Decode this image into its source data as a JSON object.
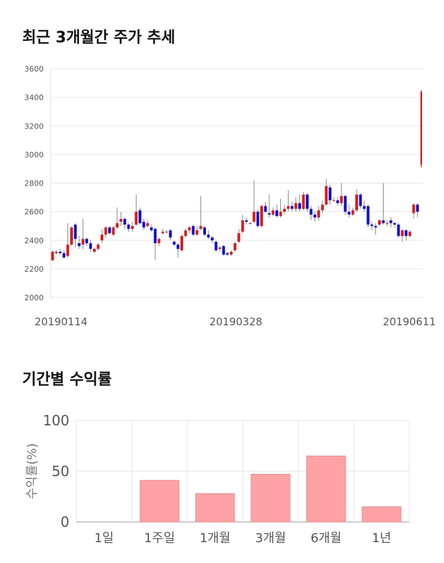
{
  "sections": {
    "price_title": "최근 3개월간 주가 추세",
    "return_title": "기간별 수익률"
  },
  "chart_data": [
    {
      "type": "candlestick",
      "title": "최근 3개월간 주가 추세",
      "ylim": [
        2000,
        3600
      ],
      "yticks": [
        2000,
        2200,
        2400,
        2600,
        2800,
        3000,
        3200,
        3400,
        3600
      ],
      "x_tick_labels": [
        "20190114",
        "20190328",
        "20190611"
      ],
      "grid": true,
      "colors": {
        "up": "#d21f1f",
        "down": "#1010c8",
        "wick": "#888888",
        "last": "#c00000"
      },
      "candles": [
        [
          2260,
          2320,
          2255,
          2330
        ],
        [
          2310,
          2320,
          2300,
          2330
        ],
        [
          2320,
          2310,
          2300,
          2340
        ],
        [
          2310,
          2280,
          2270,
          2330
        ],
        [
          2290,
          2370,
          2280,
          2520
        ],
        [
          2370,
          2490,
          2360,
          2500
        ],
        [
          2510,
          2410,
          2350,
          2520
        ],
        [
          2380,
          2360,
          2340,
          2430
        ],
        [
          2370,
          2410,
          2340,
          2550
        ],
        [
          2410,
          2380,
          2360,
          2420
        ],
        [
          2380,
          2340,
          2320,
          2400
        ],
        [
          2320,
          2340,
          2310,
          2350
        ],
        [
          2340,
          2370,
          2330,
          2380
        ],
        [
          2400,
          2440,
          2380,
          2480
        ],
        [
          2440,
          2490,
          2420,
          2500
        ],
        [
          2490,
          2450,
          2440,
          2500
        ],
        [
          2440,
          2490,
          2430,
          2500
        ],
        [
          2490,
          2520,
          2480,
          2630
        ],
        [
          2530,
          2550,
          2500,
          2600
        ],
        [
          2550,
          2510,
          2480,
          2560
        ],
        [
          2510,
          2480,
          2460,
          2520
        ],
        [
          2480,
          2500,
          2460,
          2530
        ],
        [
          2510,
          2600,
          2500,
          2720
        ],
        [
          2610,
          2520,
          2510,
          2630
        ],
        [
          2530,
          2490,
          2470,
          2550
        ],
        [
          2500,
          2520,
          2490,
          2540
        ],
        [
          2490,
          2470,
          2460,
          2510
        ],
        [
          2480,
          2380,
          2260,
          2490
        ],
        [
          2380,
          2410,
          2360,
          2420
        ],
        [
          2450,
          2460,
          2440,
          2480
        ],
        [
          2460,
          2460,
          2450,
          2470
        ],
        [
          2470,
          2420,
          2400,
          2480
        ],
        [
          2390,
          2370,
          2360,
          2400
        ],
        [
          2370,
          2340,
          2280,
          2380
        ],
        [
          2330,
          2430,
          2320,
          2440
        ],
        [
          2430,
          2470,
          2420,
          2480
        ],
        [
          2470,
          2490,
          2450,
          2500
        ],
        [
          2500,
          2440,
          2430,
          2510
        ],
        [
          2440,
          2470,
          2430,
          2500
        ],
        [
          2480,
          2500,
          2470,
          2710
        ],
        [
          2490,
          2440,
          2430,
          2500
        ],
        [
          2440,
          2420,
          2410,
          2470
        ],
        [
          2420,
          2400,
          2380,
          2430
        ],
        [
          2390,
          2330,
          2320,
          2400
        ],
        [
          2340,
          2350,
          2320,
          2360
        ],
        [
          2360,
          2300,
          2290,
          2370
        ],
        [
          2310,
          2300,
          2290,
          2320
        ],
        [
          2300,
          2320,
          2290,
          2330
        ],
        [
          2330,
          2380,
          2320,
          2390
        ],
        [
          2390,
          2450,
          2380,
          2480
        ],
        [
          2460,
          2540,
          2450,
          2580
        ],
        [
          2540,
          2530,
          2510,
          2560
        ],
        [
          2520,
          2520,
          2510,
          2530
        ],
        [
          2530,
          2600,
          2520,
          2820
        ],
        [
          2600,
          2500,
          2490,
          2620
        ],
        [
          2500,
          2640,
          2490,
          2650
        ],
        [
          2640,
          2600,
          2590,
          2670
        ],
        [
          2590,
          2580,
          2560,
          2720
        ],
        [
          2580,
          2610,
          2570,
          2630
        ],
        [
          2610,
          2570,
          2560,
          2650
        ],
        [
          2570,
          2600,
          2560,
          2690
        ],
        [
          2600,
          2620,
          2580,
          2650
        ],
        [
          2620,
          2640,
          2600,
          2750
        ],
        [
          2640,
          2620,
          2600,
          2670
        ],
        [
          2620,
          2660,
          2600,
          2700
        ],
        [
          2660,
          2620,
          2600,
          2720
        ],
        [
          2620,
          2720,
          2610,
          2740
        ],
        [
          2720,
          2620,
          2600,
          2730
        ],
        [
          2620,
          2580,
          2540,
          2640
        ],
        [
          2580,
          2560,
          2530,
          2600
        ],
        [
          2560,
          2610,
          2540,
          2640
        ],
        [
          2610,
          2650,
          2590,
          2680
        ],
        [
          2650,
          2780,
          2640,
          2830
        ],
        [
          2770,
          2680,
          2650,
          2790
        ],
        [
          2680,
          2680,
          2670,
          2700
        ],
        [
          2680,
          2660,
          2640,
          2700
        ],
        [
          2660,
          2710,
          2640,
          2800
        ],
        [
          2710,
          2600,
          2580,
          2720
        ],
        [
          2600,
          2580,
          2560,
          2650
        ],
        [
          2580,
          2610,
          2570,
          2630
        ],
        [
          2610,
          2720,
          2600,
          2760
        ],
        [
          2720,
          2640,
          2620,
          2730
        ],
        [
          2640,
          2620,
          2600,
          2680
        ],
        [
          2640,
          2510,
          2490,
          2650
        ],
        [
          2510,
          2500,
          2470,
          2530
        ],
        [
          2500,
          2490,
          2440,
          2520
        ],
        [
          2510,
          2540,
          2500,
          2550
        ],
        [
          2540,
          2520,
          2510,
          2800
        ],
        [
          2520,
          2520,
          2500,
          2540
        ],
        [
          2540,
          2520,
          2490,
          2560
        ],
        [
          2520,
          2510,
          2490,
          2530
        ],
        [
          2510,
          2430,
          2420,
          2520
        ],
        [
          2430,
          2470,
          2390,
          2480
        ],
        [
          2470,
          2430,
          2400,
          2480
        ],
        [
          2430,
          2460,
          2420,
          2470
        ],
        [
          2590,
          2650,
          2550,
          2660
        ],
        [
          2650,
          2600,
          2560,
          2660
        ],
        [
          2930,
          3440,
          2910,
          3450
        ]
      ]
    },
    {
      "type": "bar",
      "title": "기간별 수익률",
      "ylabel": "수익률(%)",
      "categories": [
        "1일",
        "1주일",
        "1개월",
        "3개월",
        "6개월",
        "1년"
      ],
      "values": [
        0,
        41,
        28,
        47,
        65,
        15
      ],
      "ylim": [
        0,
        100
      ],
      "yticks": [
        0,
        50,
        100
      ],
      "grid": true,
      "colors": {
        "bar": "#ffa2a6",
        "bar_edge": "#e0898d"
      }
    }
  ]
}
